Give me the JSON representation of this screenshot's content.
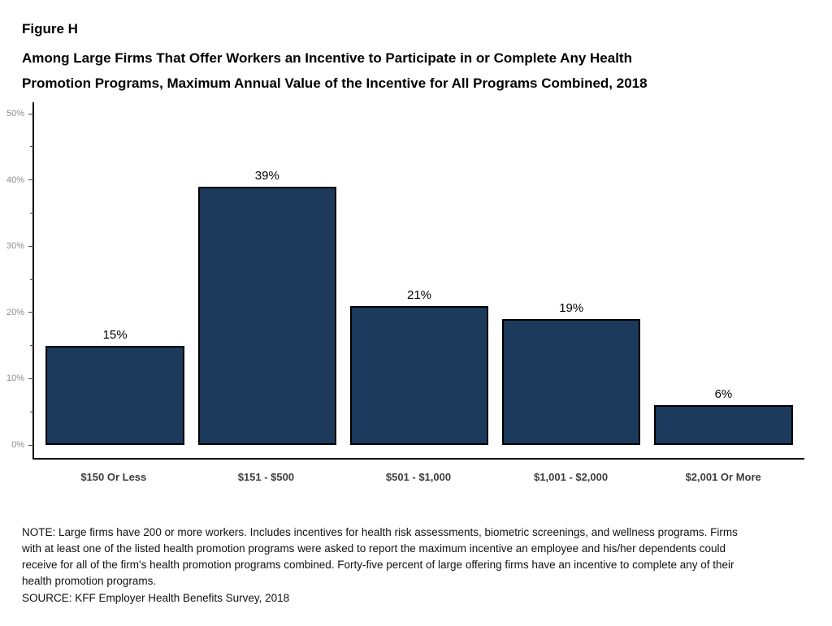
{
  "header": {
    "figure_label": "Figure H",
    "title": "Among Large Firms That Offer Workers an Incentive to Participate in or Complete Any Health Promotion Programs, Maximum Annual Value of the Incentive for All Programs Combined, 2018"
  },
  "chart_data": {
    "type": "bar",
    "title": "Among Large Firms That Offer Workers an Incentive to Participate in or Complete Any Health Promotion Programs, Maximum Annual Value of the Incentive for All Programs Combined, 2018",
    "categories": [
      "$150 Or Less",
      "$151 - $500",
      "$501 - $1,000",
      "$1,001 - $2,000",
      "$2,001 Or More"
    ],
    "values": [
      15,
      39,
      21,
      19,
      6
    ],
    "value_labels": [
      "15%",
      "39%",
      "21%",
      "19%",
      "6%"
    ],
    "xlabel": "",
    "ylabel": "",
    "ylim": [
      0,
      50
    ],
    "yticks": [
      0,
      10,
      20,
      30,
      40,
      50
    ],
    "ytick_labels": [
      "0%",
      "10%",
      "20%",
      "30%",
      "40%",
      "50%"
    ],
    "minor_yticks": [
      5,
      15,
      25,
      35,
      45
    ],
    "bar_color": "#1b3a5c",
    "bar_border_color": "#000000",
    "grid": false,
    "legend": "none"
  },
  "footer": {
    "note": "NOTE: Large firms have 200 or more workers. Includes incentives for health risk assessments, biometric screenings, and wellness programs. Firms with at least one of the listed health promotion programs were asked to report the maximum incentive an employee and his/her dependents could receive for all of the firm's health promotion programs combined. Forty-five percent of large offering firms have an incentive to complete any of their health promotion programs.",
    "source": "SOURCE: KFF Employer Health Benefits Survey, 2018"
  }
}
